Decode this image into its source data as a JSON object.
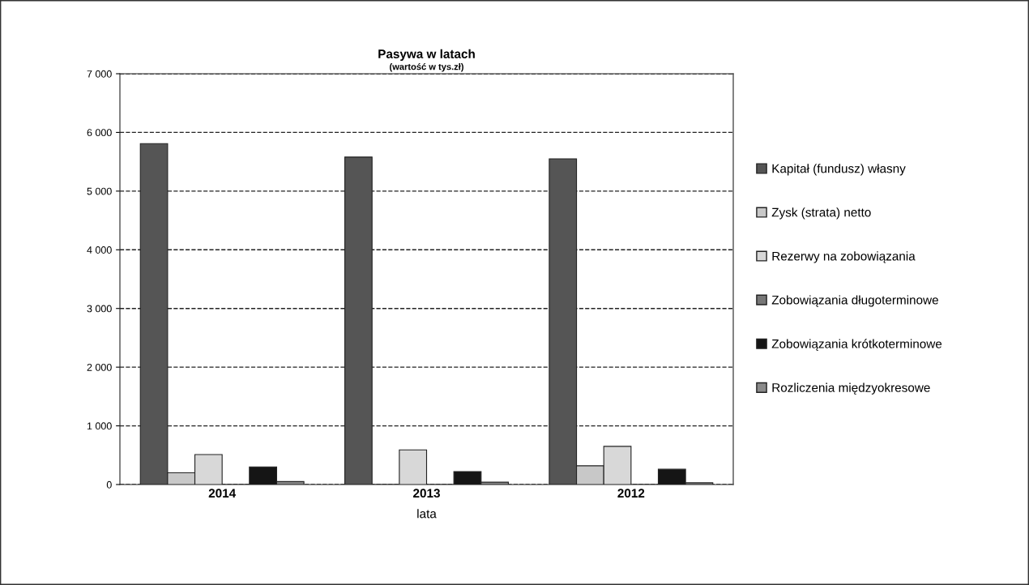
{
  "chart_data": {
    "type": "bar",
    "title": "Pasywa w latach",
    "subtitle": "(wartość w tys.zł)",
    "xlabel": "lata",
    "categories": [
      "2014",
      "2013",
      "2012"
    ],
    "series": [
      {
        "name": "Kapitał (fundusz) własny",
        "color": "#555555",
        "values": [
          5810,
          5580,
          5550
        ]
      },
      {
        "name": "Zysk (strata) netto",
        "color": "#c8c8c8",
        "values": [
          200,
          0,
          320
        ]
      },
      {
        "name": "Rezerwy na zobowiązania",
        "color": "#d8d8d8",
        "values": [
          510,
          590,
          650
        ]
      },
      {
        "name": "Zobowiązania długoterminowe",
        "color": "#777777",
        "values": [
          0,
          0,
          0
        ]
      },
      {
        "name": "Zobowiązania krótkoterminowe",
        "color": "#151515",
        "values": [
          300,
          220,
          260
        ]
      },
      {
        "name": "Rozliczenia międzyokresowe",
        "color": "#8a8a8a",
        "values": [
          50,
          40,
          30
        ]
      }
    ],
    "ylim": [
      0,
      7000
    ],
    "yticks": [
      {
        "value": 0,
        "label": "0"
      },
      {
        "value": 1000,
        "label": "1 000"
      },
      {
        "value": 2000,
        "label": "2 000"
      },
      {
        "value": 3000,
        "label": "3 000"
      },
      {
        "value": 4000,
        "label": "4 000"
      },
      {
        "value": 5000,
        "label": "5 000"
      },
      {
        "value": 6000,
        "label": "6 000"
      },
      {
        "value": 7000,
        "label": "7 000"
      }
    ],
    "grid": "y",
    "line_style": "dashed",
    "legend": "right"
  }
}
